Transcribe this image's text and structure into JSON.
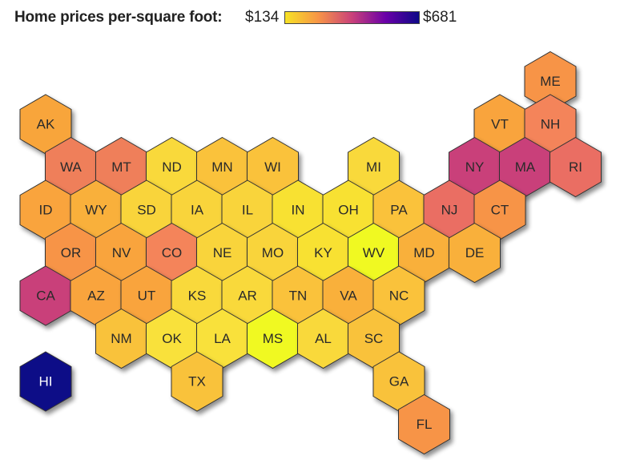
{
  "legend": {
    "title": "Home prices per-square foot:",
    "min_label": "$134",
    "max_label": "$681",
    "min_color": "#f7e225",
    "mid_color": "#c9417a",
    "max_color": "#0d0887"
  },
  "states": [
    {
      "abbr": "AK",
      "col": 0,
      "row": 0,
      "offset": 0,
      "color": "#f8a53a"
    },
    {
      "abbr": "ME",
      "col": 10,
      "row": -1,
      "offset": 0,
      "color": "#f79447"
    },
    {
      "abbr": "VT",
      "col": 9,
      "row": 0,
      "offset": 0,
      "color": "#f9a43c"
    },
    {
      "abbr": "NH",
      "col": 10,
      "row": 0,
      "offset": 0,
      "color": "#f4845a"
    },
    {
      "abbr": "WA",
      "col": 0,
      "row": 1,
      "offset": 1,
      "color": "#ef7f5a"
    },
    {
      "abbr": "MT",
      "col": 1,
      "row": 1,
      "offset": 1,
      "color": "#ef7f5a"
    },
    {
      "abbr": "ND",
      "col": 2,
      "row": 1,
      "offset": 1,
      "color": "#f9d93a"
    },
    {
      "abbr": "MN",
      "col": 3,
      "row": 1,
      "offset": 1,
      "color": "#fac23a"
    },
    {
      "abbr": "WI",
      "col": 4,
      "row": 1,
      "offset": 1,
      "color": "#fac23a"
    },
    {
      "abbr": "MI",
      "col": 6,
      "row": 1,
      "offset": 1,
      "color": "#f9d93a"
    },
    {
      "abbr": "NY",
      "col": 8,
      "row": 1,
      "offset": 1,
      "color": "#c9417a"
    },
    {
      "abbr": "MA",
      "col": 9,
      "row": 1,
      "offset": 1,
      "color": "#c9417a"
    },
    {
      "abbr": "RI",
      "col": 10,
      "row": 1,
      "offset": 1,
      "color": "#ea6e63"
    },
    {
      "abbr": "ID",
      "col": 0,
      "row": 2,
      "offset": 0,
      "color": "#f9a43c"
    },
    {
      "abbr": "WY",
      "col": 1,
      "row": 2,
      "offset": 0,
      "color": "#f9b03a"
    },
    {
      "abbr": "SD",
      "col": 2,
      "row": 2,
      "offset": 0,
      "color": "#f9d43a"
    },
    {
      "abbr": "IA",
      "col": 3,
      "row": 2,
      "offset": 0,
      "color": "#f9d43a"
    },
    {
      "abbr": "IL",
      "col": 4,
      "row": 2,
      "offset": 0,
      "color": "#f9d43a"
    },
    {
      "abbr": "IN",
      "col": 5,
      "row": 2,
      "offset": 0,
      "color": "#f8e131"
    },
    {
      "abbr": "OH",
      "col": 6,
      "row": 2,
      "offset": 0,
      "color": "#f8e131"
    },
    {
      "abbr": "PA",
      "col": 7,
      "row": 2,
      "offset": 0,
      "color": "#fac23a"
    },
    {
      "abbr": "NJ",
      "col": 8,
      "row": 2,
      "offset": 0,
      "color": "#ea6e63"
    },
    {
      "abbr": "CT",
      "col": 9,
      "row": 2,
      "offset": 0,
      "color": "#f79447"
    },
    {
      "abbr": "OR",
      "col": 0,
      "row": 3,
      "offset": 1,
      "color": "#f79447"
    },
    {
      "abbr": "NV",
      "col": 1,
      "row": 3,
      "offset": 1,
      "color": "#f9a43c"
    },
    {
      "abbr": "CO",
      "col": 2,
      "row": 3,
      "offset": 1,
      "color": "#f4845a"
    },
    {
      "abbr": "NE",
      "col": 3,
      "row": 3,
      "offset": 1,
      "color": "#f9d43a"
    },
    {
      "abbr": "MO",
      "col": 4,
      "row": 3,
      "offset": 1,
      "color": "#f9d43a"
    },
    {
      "abbr": "KY",
      "col": 5,
      "row": 3,
      "offset": 1,
      "color": "#f8e131"
    },
    {
      "abbr": "WV",
      "col": 6,
      "row": 3,
      "offset": 1,
      "color": "#f0f921"
    },
    {
      "abbr": "MD",
      "col": 7,
      "row": 3,
      "offset": 1,
      "color": "#f9b03a"
    },
    {
      "abbr": "DE",
      "col": 8,
      "row": 3,
      "offset": 1,
      "color": "#f9b03a"
    },
    {
      "abbr": "CA",
      "col": 0,
      "row": 4,
      "offset": 0,
      "color": "#c9417a"
    },
    {
      "abbr": "AZ",
      "col": 1,
      "row": 4,
      "offset": 0,
      "color": "#f9a43c"
    },
    {
      "abbr": "UT",
      "col": 2,
      "row": 4,
      "offset": 0,
      "color": "#f9a43c"
    },
    {
      "abbr": "KS",
      "col": 3,
      "row": 4,
      "offset": 0,
      "color": "#f9d93a"
    },
    {
      "abbr": "AR",
      "col": 4,
      "row": 4,
      "offset": 0,
      "color": "#f9d93a"
    },
    {
      "abbr": "TN",
      "col": 5,
      "row": 4,
      "offset": 0,
      "color": "#fac23a"
    },
    {
      "abbr": "VA",
      "col": 6,
      "row": 4,
      "offset": 0,
      "color": "#f9b03a"
    },
    {
      "abbr": "NC",
      "col": 7,
      "row": 4,
      "offset": 0,
      "color": "#fac23a"
    },
    {
      "abbr": "NM",
      "col": 1,
      "row": 5,
      "offset": 1,
      "color": "#f9c23a"
    },
    {
      "abbr": "OK",
      "col": 2,
      "row": 5,
      "offset": 1,
      "color": "#f9e13a"
    },
    {
      "abbr": "LA",
      "col": 3,
      "row": 5,
      "offset": 1,
      "color": "#f9e13a"
    },
    {
      "abbr": "MS",
      "col": 4,
      "row": 5,
      "offset": 1,
      "color": "#f0f921"
    },
    {
      "abbr": "AL",
      "col": 5,
      "row": 5,
      "offset": 1,
      "color": "#f9d93a"
    },
    {
      "abbr": "SC",
      "col": 6,
      "row": 5,
      "offset": 1,
      "color": "#f9c23a"
    },
    {
      "abbr": "HI",
      "col": 0,
      "row": 6,
      "offset": 0,
      "color": "#0d0887"
    },
    {
      "abbr": "TX",
      "col": 3,
      "row": 6,
      "offset": 0,
      "color": "#f9c23a"
    },
    {
      "abbr": "GA",
      "col": 7,
      "row": 6,
      "offset": 0,
      "color": "#f9c23a"
    },
    {
      "abbr": "FL",
      "col": 7,
      "row": 7,
      "offset": 1,
      "color": "#f79447"
    }
  ]
}
